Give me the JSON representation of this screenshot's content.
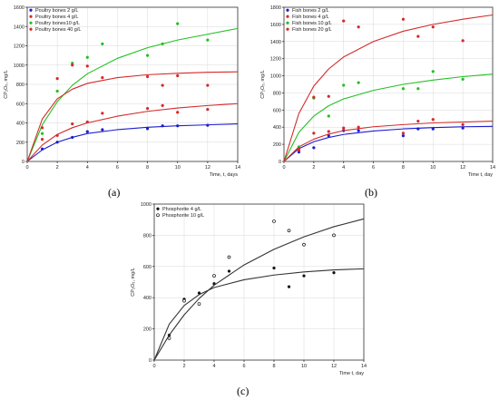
{
  "chart_data": [
    {
      "panel": "(a)",
      "type": "scatter",
      "xlabel": "Time, t, days",
      "ylabel": "CP₂O₅, mg/L",
      "xlim": [
        0,
        14
      ],
      "ylim": [
        0,
        1600
      ],
      "xticks": [
        0,
        2,
        4,
        6,
        8,
        10,
        12,
        14
      ],
      "yticks": [
        0,
        200,
        400,
        600,
        800,
        1000,
        1200,
        1400,
        1600
      ],
      "grid": true,
      "legend": "top-left",
      "series": [
        {
          "name": "Poultry bones 2 g/L",
          "color": "#1c1ccf",
          "x": [
            1,
            2,
            3,
            4,
            5,
            8,
            9,
            10,
            12
          ],
          "y": [
            130,
            200,
            250,
            310,
            330,
            340,
            370,
            370,
            375
          ],
          "fit": [
            [
              0,
              0
            ],
            [
              1,
              120
            ],
            [
              2,
              200
            ],
            [
              3,
              250
            ],
            [
              4,
              290
            ],
            [
              6,
              330
            ],
            [
              8,
              355
            ],
            [
              10,
              370
            ],
            [
              12,
              380
            ],
            [
              14,
              390
            ]
          ]
        },
        {
          "name": "Poultry bones 4 g/L",
          "color": "#d42a2a",
          "x": [
            1,
            2,
            3,
            4,
            5,
            8,
            9,
            10,
            12
          ],
          "y": [
            230,
            270,
            390,
            410,
            500,
            550,
            580,
            510,
            540
          ],
          "fit": [
            [
              0,
              0
            ],
            [
              1,
              170
            ],
            [
              2,
              280
            ],
            [
              3,
              350
            ],
            [
              4,
              400
            ],
            [
              6,
              470
            ],
            [
              8,
              520
            ],
            [
              10,
              555
            ],
            [
              12,
              580
            ],
            [
              14,
              600
            ]
          ]
        },
        {
          "name": "Poultry bones10 g/L",
          "color": "#22c022",
          "x": [
            1,
            2,
            3,
            4,
            5,
            8,
            9,
            10,
            12
          ],
          "y": [
            290,
            730,
            1020,
            1080,
            1220,
            1100,
            1220,
            1430,
            1260
          ],
          "fit": [
            [
              0,
              0
            ],
            [
              1,
              380
            ],
            [
              2,
              620
            ],
            [
              3,
              790
            ],
            [
              4,
              910
            ],
            [
              6,
              1070
            ],
            [
              8,
              1180
            ],
            [
              10,
              1260
            ],
            [
              12,
              1320
            ],
            [
              14,
              1380
            ]
          ]
        },
        {
          "name": "Poultry bones 40 g/L",
          "color": "#d42a2a",
          "x": [
            1,
            2,
            3,
            4,
            5,
            8,
            9,
            10,
            12
          ],
          "y": [
            350,
            860,
            1000,
            990,
            870,
            880,
            790,
            890,
            790
          ],
          "fit": [
            [
              0,
              0
            ],
            [
              1,
              440
            ],
            [
              2,
              650
            ],
            [
              3,
              750
            ],
            [
              4,
              810
            ],
            [
              6,
              870
            ],
            [
              8,
              900
            ],
            [
              10,
              915
            ],
            [
              12,
              925
            ],
            [
              14,
              930
            ]
          ]
        }
      ]
    },
    {
      "panel": "(b)",
      "type": "scatter",
      "xlabel": "Time t, day",
      "ylabel": "CP₂O₅, mg/L",
      "xlim": [
        0,
        14
      ],
      "ylim": [
        0,
        1800
      ],
      "xticks": [
        0,
        2,
        4,
        6,
        8,
        10,
        12,
        14
      ],
      "yticks": [
        0,
        200,
        400,
        600,
        800,
        1000,
        1200,
        1400,
        1600,
        1800
      ],
      "grid": true,
      "legend": "top-left",
      "series": [
        {
          "name": "Fish bones 2 g/L",
          "color": "#1c1ccf",
          "x": [
            1,
            2,
            3,
            4,
            5,
            8,
            9,
            10,
            12
          ],
          "y": [
            110,
            160,
            300,
            360,
            360,
            300,
            380,
            380,
            390
          ],
          "fit": [
            [
              0,
              0
            ],
            [
              1,
              150
            ],
            [
              2,
              230
            ],
            [
              3,
              280
            ],
            [
              4,
              315
            ],
            [
              6,
              355
            ],
            [
              8,
              380
            ],
            [
              10,
              395
            ],
            [
              12,
              405
            ],
            [
              14,
              410
            ]
          ]
        },
        {
          "name": "Fish bones 4 g/L",
          "color": "#d42a2a",
          "x": [
            1,
            2,
            3,
            4,
            5,
            8,
            9,
            10,
            12
          ],
          "y": [
            130,
            330,
            350,
            390,
            400,
            330,
            470,
            490,
            430
          ],
          "fit": [
            [
              0,
              0
            ],
            [
              1,
              170
            ],
            [
              2,
              260
            ],
            [
              3,
              320
            ],
            [
              4,
              360
            ],
            [
              6,
              405
            ],
            [
              8,
              430
            ],
            [
              10,
              450
            ],
            [
              12,
              460
            ],
            [
              14,
              470
            ]
          ]
        },
        {
          "name": "Fish bones 10 g/L",
          "color": "#22c022",
          "x": [
            1,
            2,
            3,
            4,
            5,
            8,
            9,
            10,
            12
          ],
          "y": [
            170,
            740,
            530,
            890,
            920,
            850,
            850,
            1050,
            960
          ],
          "fit": [
            [
              0,
              0
            ],
            [
              1,
              340
            ],
            [
              2,
              530
            ],
            [
              3,
              650
            ],
            [
              4,
              730
            ],
            [
              6,
              830
            ],
            [
              8,
              900
            ],
            [
              10,
              950
            ],
            [
              12,
              990
            ],
            [
              14,
              1020
            ]
          ]
        },
        {
          "name": "Fish bones 20 g/L",
          "color": "#d42a2a",
          "x": [
            1,
            2,
            3,
            4,
            5,
            8,
            9,
            10,
            12
          ],
          "y": [
            150,
            750,
            760,
            1640,
            1570,
            1660,
            1460,
            1570,
            1410
          ],
          "fit": [
            [
              0,
              0
            ],
            [
              1,
              560
            ],
            [
              2,
              880
            ],
            [
              3,
              1080
            ],
            [
              4,
              1220
            ],
            [
              6,
              1400
            ],
            [
              8,
              1520
            ],
            [
              10,
              1600
            ],
            [
              12,
              1660
            ],
            [
              14,
              1710
            ]
          ]
        }
      ]
    },
    {
      "panel": "(c)",
      "type": "scatter",
      "xlabel": "Time t, day",
      "ylabel": "CP₂O₅, mg/L",
      "xlim": [
        0,
        14
      ],
      "ylim": [
        0,
        1000
      ],
      "xticks": [
        0,
        2,
        4,
        6,
        8,
        10,
        12,
        14
      ],
      "yticks": [
        0,
        200,
        400,
        600,
        800,
        1000
      ],
      "grid": true,
      "legend": "top-left",
      "series": [
        {
          "name": "Phosphorite 4 g/L",
          "color": "#111111",
          "marker": "filled",
          "x": [
            1,
            2,
            3,
            4,
            5,
            8,
            9,
            10,
            12
          ],
          "y": [
            160,
            390,
            430,
            490,
            570,
            590,
            470,
            540,
            560
          ],
          "fit": [
            [
              0,
              0
            ],
            [
              1,
              230
            ],
            [
              2,
              350
            ],
            [
              3,
              420
            ],
            [
              4,
              465
            ],
            [
              6,
              515
            ],
            [
              8,
              545
            ],
            [
              10,
              565
            ],
            [
              12,
              578
            ],
            [
              14,
              585
            ]
          ]
        },
        {
          "name": "Phosphorite 10 g/L",
          "color": "#111111",
          "marker": "open",
          "x": [
            1,
            2,
            3,
            4,
            5,
            8,
            9,
            10,
            12
          ],
          "y": [
            140,
            380,
            360,
            540,
            660,
            890,
            830,
            740,
            800
          ],
          "fit": [
            [
              0,
              0
            ],
            [
              1,
              160
            ],
            [
              2,
              290
            ],
            [
              3,
              395
            ],
            [
              4,
              480
            ],
            [
              6,
              610
            ],
            [
              8,
              710
            ],
            [
              10,
              790
            ],
            [
              12,
              855
            ],
            [
              14,
              905
            ]
          ]
        }
      ]
    }
  ],
  "labels": {
    "a": "(a)",
    "b": "(b)",
    "c": "(c)"
  }
}
